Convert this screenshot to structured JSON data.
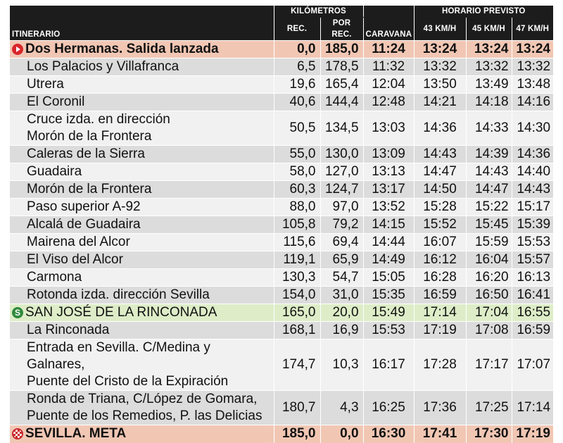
{
  "header": {
    "itinerario": "ITINERARIO",
    "kilometros": "KILÓMETROS",
    "rec": "REC.",
    "por_rec": "POR REC.",
    "caravana": "CARAVANA",
    "horario": "HORARIO PREVISTO",
    "s43": "43 KM/H",
    "s45": "45 KM/H",
    "s47": "47 KM/H"
  },
  "colors": {
    "start_finish": "#f1c7b4",
    "sprint": "#deedc8",
    "header": "#1c1c1c",
    "start_icon": "#d8262b",
    "sprint_icon": "#2f8a3c"
  },
  "rows": [
    {
      "type": "start",
      "icon": "start-icon",
      "name": "Dos Hermanas. Salida lanzada",
      "rec": "0,0",
      "por": "185,0",
      "car": "11:24",
      "t43": "13:24",
      "t45": "13:24",
      "t47": "13:24"
    },
    {
      "type": "normal",
      "name": "Los Palacios y Villafranca",
      "rec": "6,5",
      "por": "178,5",
      "car": "11:32",
      "t43": "13:32",
      "t45": "13:32",
      "t47": "13:32"
    },
    {
      "type": "normal",
      "name": "Utrera",
      "rec": "19,6",
      "por": "165,4",
      "car": "12:04",
      "t43": "13:50",
      "t45": "13:49",
      "t47": "13:48"
    },
    {
      "type": "normal",
      "name": "El Coronil",
      "rec": "40,6",
      "por": "144,4",
      "car": "12:48",
      "t43": "14:21",
      "t45": "14:18",
      "t47": "14:16"
    },
    {
      "type": "normal",
      "name": "Cruce izda. en dirección",
      "name2": "Morón de la Frontera",
      "rec": "50,5",
      "por": "134,5",
      "car": "13:03",
      "t43": "14:36",
      "t45": "14:33",
      "t47": "14:30"
    },
    {
      "type": "normal",
      "name": "Caleras de la Sierra",
      "rec": "55,0",
      "por": "130,0",
      "car": "13:09",
      "t43": "14:43",
      "t45": "14:39",
      "t47": "14:36"
    },
    {
      "type": "normal",
      "name": "Guadaira",
      "rec": "58,0",
      "por": "127,0",
      "car": "13:13",
      "t43": "14:47",
      "t45": "14:43",
      "t47": "14:40"
    },
    {
      "type": "normal",
      "name": "Morón de la Frontera",
      "rec": "60,3",
      "por": "124,7",
      "car": "13:17",
      "t43": "14:50",
      "t45": "14:47",
      "t47": "14:43"
    },
    {
      "type": "normal",
      "name": "Paso superior A-92",
      "rec": "88,0",
      "por": "97,0",
      "car": "13:52",
      "t43": "15:28",
      "t45": "15:22",
      "t47": "15:17"
    },
    {
      "type": "normal",
      "name": "Alcalá de Guadaira",
      "rec": "105,8",
      "por": "79,2",
      "car": "14:15",
      "t43": "15:52",
      "t45": "15:45",
      "t47": "15:39"
    },
    {
      "type": "normal",
      "name": "Mairena del Alcor",
      "rec": "115,6",
      "por": "69,4",
      "car": "14:44",
      "t43": "16:07",
      "t45": "15:59",
      "t47": "15:53"
    },
    {
      "type": "normal",
      "name": "El Viso del Alcor",
      "rec": "119,1",
      "por": "65,9",
      "car": "14:49",
      "t43": "16:12",
      "t45": "16:04",
      "t47": "15:57"
    },
    {
      "type": "normal",
      "name": "Carmona",
      "rec": "130,3",
      "por": "54,7",
      "car": "15:05",
      "t43": "16:28",
      "t45": "16:20",
      "t47": "16:13"
    },
    {
      "type": "normal",
      "name": "Rotonda izda. dirección Sevilla",
      "rec": "154,0",
      "por": "31,0",
      "car": "15:35",
      "t43": "16:59",
      "t45": "16:50",
      "t47": "16:41"
    },
    {
      "type": "sprint",
      "icon": "sprint-icon",
      "icon_letter": "S",
      "name": "SAN JOSÉ DE LA RINCONADA",
      "rec": "165,0",
      "por": "20,0",
      "car": "15:49",
      "t43": "17:14",
      "t45": "17:04",
      "t47": "16:55"
    },
    {
      "type": "normal",
      "name": "La Rinconada",
      "rec": "168,1",
      "por": "16,9",
      "car": "15:53",
      "t43": "17:19",
      "t45": "17:08",
      "t47": "16:59"
    },
    {
      "type": "normal",
      "name": "Entrada en Sevilla. C/Medina y Galnares,",
      "name2": "Puente del Cristo de la Expiración",
      "rec": "174,7",
      "por": "10,3",
      "car": "16:17",
      "t43": "17:28",
      "t45": "17:17",
      "t47": "17:07"
    },
    {
      "type": "normal",
      "name": "Ronda de Triana, C/López de Gomara,",
      "name2": "Puente de los Remedios, P. las Delicias",
      "rec": "180,7",
      "por": "4,3",
      "car": "16:25",
      "t43": "17:36",
      "t45": "17:25",
      "t47": "17:14"
    },
    {
      "type": "finish",
      "icon": "finish-icon",
      "name": "SEVILLA. META",
      "rec": "185,0",
      "por": "0,0",
      "car": "16:30",
      "t43": "17:41",
      "t45": "17:30",
      "t47": "17:19"
    }
  ]
}
